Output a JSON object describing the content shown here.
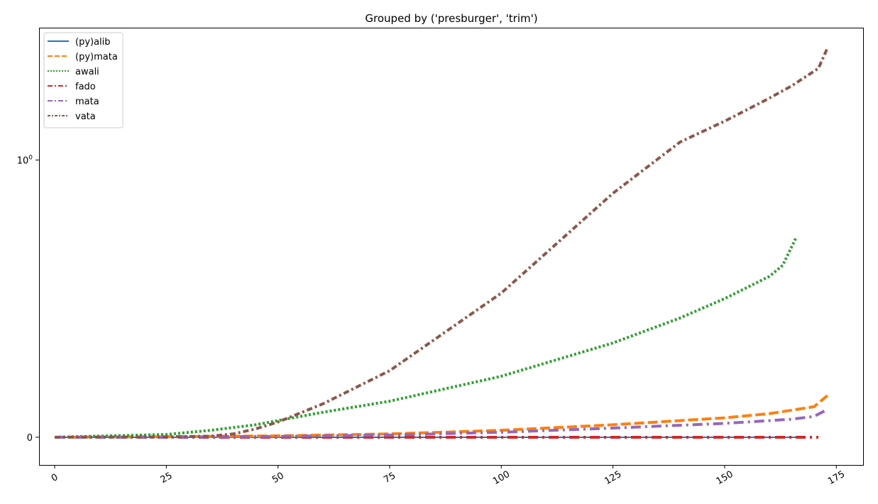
{
  "chart_data": {
    "type": "line",
    "title": "Grouped by ('presburger', 'trim')",
    "xlabel": "",
    "ylabel": "",
    "xlim": [
      -3.5,
      181
    ],
    "x_ticks": [
      0,
      25,
      50,
      75,
      100,
      125,
      150,
      175
    ],
    "x_tick_labels": [
      "0",
      "25",
      "50",
      "75",
      "100",
      "125",
      "150",
      "175"
    ],
    "yscale": "symlog",
    "symlog_linthresh": 1,
    "ylim": [
      -0.1,
      3.0
    ],
    "y_ticks": [
      0,
      1
    ],
    "y_tick_labels": [
      "0",
      "10^0"
    ],
    "grid": false,
    "legend_position": "top-left",
    "series": [
      {
        "name": "(py)alib",
        "color": "#1f77b4",
        "dash": "solid",
        "points": [
          [
            0,
            0
          ],
          [
            50,
            0
          ],
          [
            100,
            0
          ],
          [
            150,
            0
          ],
          [
            166,
            0
          ]
        ]
      },
      {
        "name": "(py)mata",
        "color": "#ff7f0e",
        "dash": "dashed",
        "points": [
          [
            0,
            0
          ],
          [
            25,
            0.002
          ],
          [
            50,
            0.005
          ],
          [
            75,
            0.012
          ],
          [
            100,
            0.025
          ],
          [
            125,
            0.045
          ],
          [
            150,
            0.07
          ],
          [
            160,
            0.085
          ],
          [
            170,
            0.11
          ],
          [
            173,
            0.15
          ]
        ]
      },
      {
        "name": "awali",
        "color": "#2ca02c",
        "dash": "dotted",
        "points": [
          [
            0,
            0
          ],
          [
            10,
            0.004
          ],
          [
            25,
            0.01
          ],
          [
            35,
            0.025
          ],
          [
            45,
            0.045
          ],
          [
            50,
            0.06
          ],
          [
            60,
            0.09
          ],
          [
            75,
            0.13
          ],
          [
            100,
            0.22
          ],
          [
            125,
            0.34
          ],
          [
            140,
            0.43
          ],
          [
            150,
            0.5
          ],
          [
            160,
            0.58
          ],
          [
            163,
            0.62
          ],
          [
            166,
            0.72
          ]
        ]
      },
      {
        "name": "fado",
        "color": "#d62728",
        "dash": "dashdot",
        "points": [
          [
            0,
            0
          ],
          [
            50,
            0
          ],
          [
            100,
            0
          ],
          [
            150,
            0
          ],
          [
            171,
            0
          ]
        ]
      },
      {
        "name": "mata",
        "color": "#9467bd",
        "dash": "dashdot",
        "points": [
          [
            0,
            0
          ],
          [
            25,
            0.001
          ],
          [
            50,
            0.003
          ],
          [
            75,
            0.008
          ],
          [
            100,
            0.018
          ],
          [
            125,
            0.033
          ],
          [
            150,
            0.05
          ],
          [
            165,
            0.065
          ],
          [
            170,
            0.075
          ],
          [
            173,
            0.1
          ]
        ]
      },
      {
        "name": "vata",
        "color": "#8c564b",
        "dash": "densely-dashdotted",
        "points": [
          [
            0,
            0
          ],
          [
            25,
            0.001
          ],
          [
            35,
            0.004
          ],
          [
            40,
            0.012
          ],
          [
            45,
            0.03
          ],
          [
            50,
            0.055
          ],
          [
            60,
            0.12
          ],
          [
            75,
            0.24
          ],
          [
            100,
            0.52
          ],
          [
            125,
            0.88
          ],
          [
            140,
            1.16
          ],
          [
            150,
            1.38
          ],
          [
            160,
            1.67
          ],
          [
            165,
            1.85
          ],
          [
            168,
            1.99
          ],
          [
            171,
            2.14
          ],
          [
            173,
            2.53
          ]
        ]
      }
    ]
  }
}
